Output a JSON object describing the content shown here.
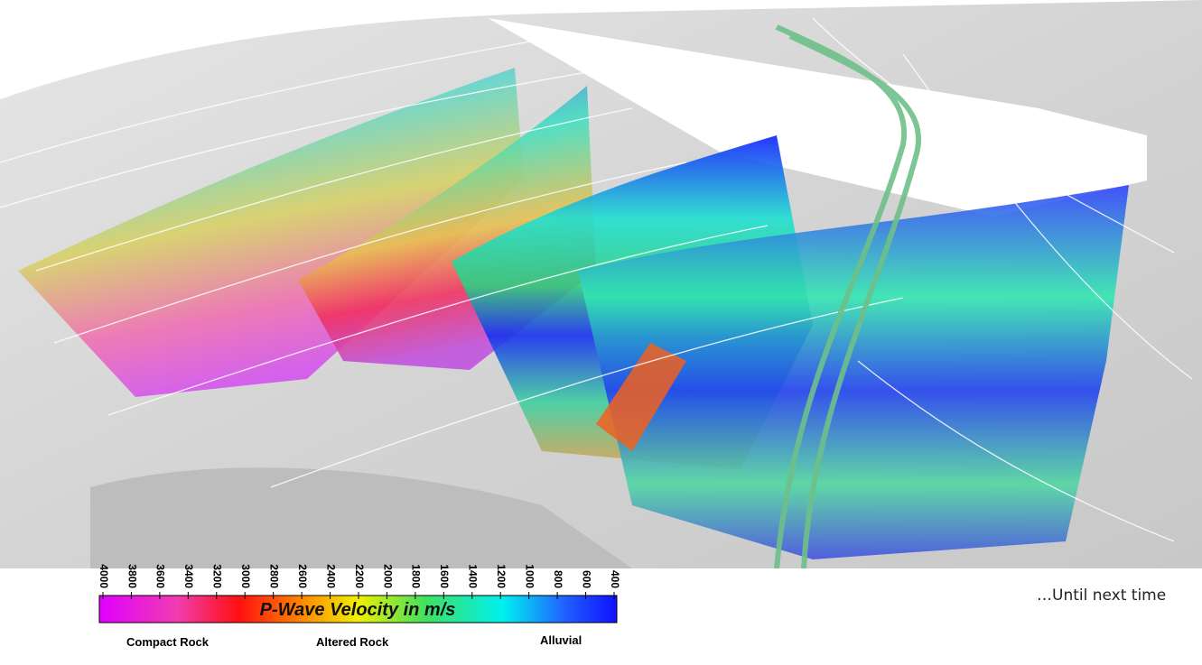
{
  "colorbar": {
    "title": "P-Wave Velocity in m/s",
    "lim": [
      4000,
      400
    ],
    "ticks": [
      4000,
      3800,
      3600,
      3400,
      3200,
      3000,
      2800,
      2600,
      2400,
      2200,
      2000,
      1800,
      1600,
      1400,
      1200,
      1000,
      800,
      600,
      400
    ],
    "labels": [
      "Compact Rock",
      "Altered Rock",
      "Alluvial"
    ]
  },
  "outro": "…Until next time"
}
